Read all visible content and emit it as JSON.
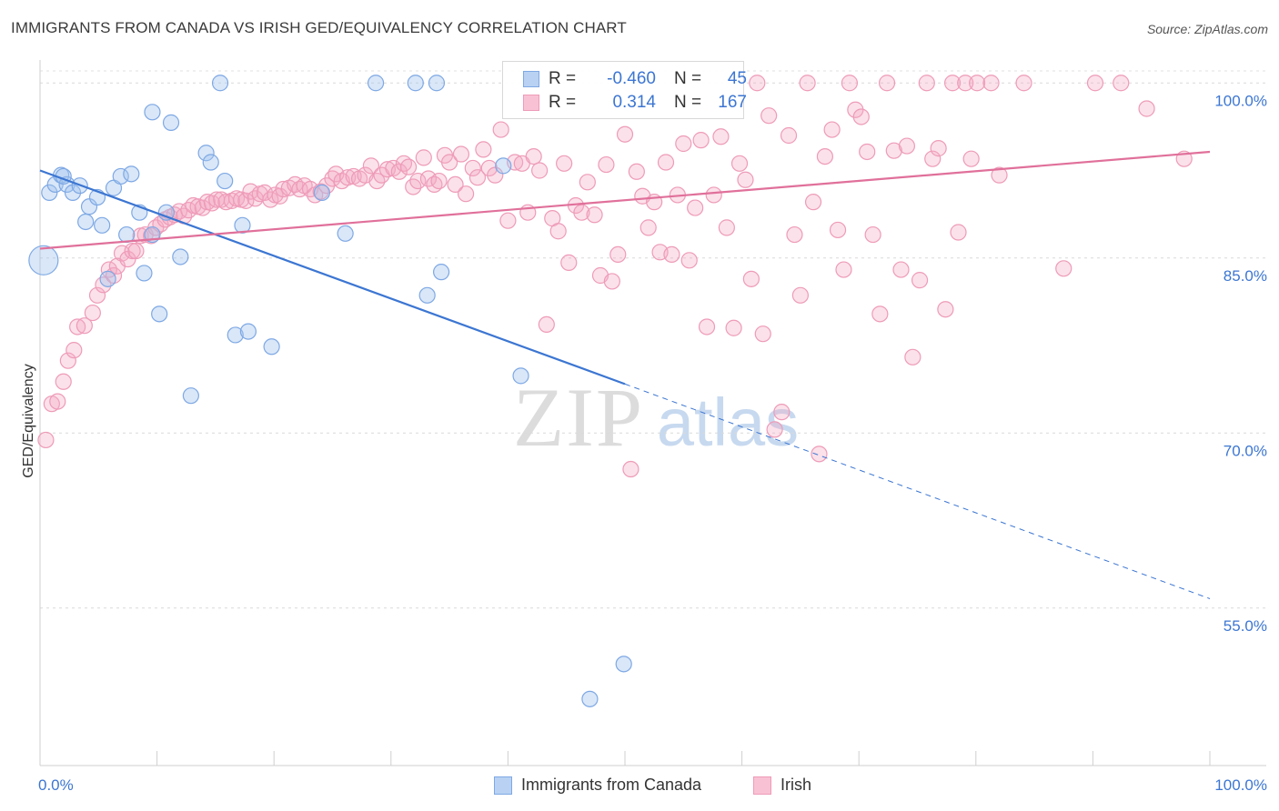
{
  "title": "IMMIGRANTS FROM CANADA VS IRISH GED/EQUIVALENCY CORRELATION CHART",
  "source": "Source: ZipAtlas.com",
  "watermark": {
    "zip": "ZIP",
    "atlas": "atlas"
  },
  "legend": {
    "rows": [
      {
        "r_label": "R =",
        "r_value": "-0.460",
        "n_label": "N =",
        "n_value": "45",
        "fill": "#b9d2f3",
        "stroke": "#7ea8e4"
      },
      {
        "r_label": "R =",
        "r_value": "0.314",
        "n_label": "N =",
        "n_value": "167",
        "fill": "#f9c2d4",
        "stroke": "#ee9bb8"
      }
    ]
  },
  "bottom_legend": [
    {
      "label": "Immigrants from Canada",
      "fill": "#b9d2f3",
      "stroke": "#7ea8e4"
    },
    {
      "label": "Irish",
      "fill": "#f9c2d4",
      "stroke": "#ee9bb8"
    }
  ],
  "chart_data": {
    "type": "scatter",
    "title": "IMMIGRANTS FROM CANADA VS IRISH GED/EQUIVALENCY CORRELATION CHART",
    "xlabel": "",
    "ylabel": "GED/Equivalency",
    "xlim": [
      0,
      100
    ],
    "ylim": [
      41.5,
      101.5
    ],
    "x_tick_labels": [
      "0.0%",
      "100.0%"
    ],
    "y_ticks": [
      100,
      85,
      70,
      55
    ],
    "y_tick_labels": [
      "100.0%",
      "85.0%",
      "70.0%",
      "55.0%"
    ],
    "grid": "horizontal dashed",
    "legend_position": "top-center",
    "colors": {
      "canada": "#3c76d2",
      "irish": "#e0709a"
    },
    "series": [
      {
        "name": "Immigrants from Canada",
        "color": "#3c76d2",
        "r": -0.46,
        "n": 45,
        "trend": {
          "x0": 0,
          "y0": 92.5,
          "x1": 50,
          "y1": 74.2,
          "dashed_to_x": 100,
          "dashed_to_y": 55.8
        },
        "points": [
          [
            0.3,
            84.8
          ],
          [
            0.8,
            90.6
          ],
          [
            1.3,
            91.3
          ],
          [
            1.8,
            92.1
          ],
          [
            2.3,
            91.3
          ],
          [
            2.8,
            90.6
          ],
          [
            3.4,
            91.2
          ],
          [
            3.9,
            88.1
          ],
          [
            4.2,
            89.4
          ],
          [
            4.9,
            90.2
          ],
          [
            5.3,
            87.8
          ],
          [
            6.3,
            91.0
          ],
          [
            6.9,
            92.0
          ],
          [
            7.4,
            87.0
          ],
          [
            7.8,
            92.2
          ],
          [
            8.5,
            88.9
          ],
          [
            8.9,
            83.7
          ],
          [
            9.6,
            97.5
          ],
          [
            9.6,
            87.0
          ],
          [
            10.2,
            80.2
          ],
          [
            10.8,
            88.9
          ],
          [
            11.2,
            96.6
          ],
          [
            12.0,
            85.1
          ],
          [
            12.9,
            73.2
          ],
          [
            14.2,
            94.0
          ],
          [
            14.6,
            93.2
          ],
          [
            15.4,
            100.0
          ],
          [
            15.8,
            91.6
          ],
          [
            16.7,
            78.4
          ],
          [
            17.3,
            87.8
          ],
          [
            17.8,
            78.7
          ],
          [
            19.8,
            77.4
          ],
          [
            24.1,
            90.6
          ],
          [
            26.1,
            87.1
          ],
          [
            28.7,
            100.0
          ],
          [
            32.1,
            100.0
          ],
          [
            33.1,
            81.8
          ],
          [
            33.9,
            100.0
          ],
          [
            34.3,
            83.8
          ],
          [
            39.6,
            92.9
          ],
          [
            41.1,
            74.9
          ],
          [
            47.0,
            47.2
          ],
          [
            49.9,
            50.2
          ],
          [
            5.8,
            83.2
          ],
          [
            2.0,
            92.0
          ]
        ]
      },
      {
        "name": "Irish",
        "color": "#e0709a",
        "r": 0.314,
        "n": 167,
        "trend": {
          "x0": 0,
          "y0": 85.8,
          "x1": 100,
          "y1": 94.1
        },
        "points": [
          [
            0.5,
            69.4
          ],
          [
            1.0,
            72.5
          ],
          [
            1.5,
            72.7
          ],
          [
            2.0,
            74.4
          ],
          [
            2.4,
            76.2
          ],
          [
            2.9,
            77.1
          ],
          [
            3.2,
            79.1
          ],
          [
            3.8,
            79.2
          ],
          [
            4.5,
            80.3
          ],
          [
            4.9,
            81.8
          ],
          [
            5.4,
            82.7
          ],
          [
            5.9,
            84.0
          ],
          [
            6.3,
            83.5
          ],
          [
            6.6,
            84.3
          ],
          [
            7.0,
            85.4
          ],
          [
            7.5,
            84.9
          ],
          [
            7.9,
            85.6
          ],
          [
            8.2,
            85.6
          ],
          [
            8.6,
            86.9
          ],
          [
            9.0,
            87.0
          ],
          [
            9.5,
            86.9
          ],
          [
            9.9,
            87.6
          ],
          [
            10.3,
            87.9
          ],
          [
            10.7,
            88.3
          ],
          [
            11.1,
            88.5
          ],
          [
            11.5,
            88.7
          ],
          [
            11.9,
            89.0
          ],
          [
            12.3,
            88.6
          ],
          [
            12.7,
            89.1
          ],
          [
            13.1,
            89.5
          ],
          [
            13.5,
            89.4
          ],
          [
            13.9,
            89.3
          ],
          [
            14.3,
            89.8
          ],
          [
            14.7,
            89.7
          ],
          [
            15.1,
            90.0
          ],
          [
            15.5,
            90.0
          ],
          [
            15.9,
            89.8
          ],
          [
            16.4,
            89.9
          ],
          [
            16.8,
            90.1
          ],
          [
            17.2,
            90.0
          ],
          [
            17.6,
            89.9
          ],
          [
            18.0,
            90.7
          ],
          [
            18.4,
            90.1
          ],
          [
            18.8,
            90.5
          ],
          [
            19.2,
            90.6
          ],
          [
            19.7,
            90.0
          ],
          [
            20.1,
            90.4
          ],
          [
            20.5,
            90.3
          ],
          [
            20.8,
            90.9
          ],
          [
            21.3,
            91.0
          ],
          [
            21.8,
            91.3
          ],
          [
            22.2,
            90.9
          ],
          [
            22.6,
            91.2
          ],
          [
            23.1,
            90.9
          ],
          [
            23.5,
            90.4
          ],
          [
            24.0,
            90.7
          ],
          [
            24.5,
            91.2
          ],
          [
            25.0,
            91.8
          ],
          [
            25.3,
            92.2
          ],
          [
            25.8,
            91.6
          ],
          [
            26.3,
            91.9
          ],
          [
            26.8,
            92.0
          ],
          [
            27.3,
            91.8
          ],
          [
            27.8,
            92.1
          ],
          [
            28.3,
            92.9
          ],
          [
            28.8,
            91.6
          ],
          [
            29.2,
            92.1
          ],
          [
            29.7,
            92.6
          ],
          [
            30.2,
            92.7
          ],
          [
            30.7,
            92.4
          ],
          [
            31.1,
            93.1
          ],
          [
            31.5,
            92.8
          ],
          [
            31.9,
            91.1
          ],
          [
            32.3,
            91.6
          ],
          [
            32.8,
            93.6
          ],
          [
            33.2,
            91.8
          ],
          [
            33.7,
            91.3
          ],
          [
            34.1,
            91.6
          ],
          [
            34.6,
            93.8
          ],
          [
            35.0,
            93.2
          ],
          [
            35.5,
            91.3
          ],
          [
            36.0,
            93.9
          ],
          [
            36.4,
            90.5
          ],
          [
            37.0,
            92.7
          ],
          [
            37.4,
            91.9
          ],
          [
            37.9,
            94.3
          ],
          [
            38.4,
            92.7
          ],
          [
            38.9,
            92.1
          ],
          [
            39.4,
            96.0
          ],
          [
            40.0,
            88.2
          ],
          [
            40.6,
            93.2
          ],
          [
            41.2,
            93.1
          ],
          [
            41.7,
            88.9
          ],
          [
            42.2,
            93.7
          ],
          [
            42.7,
            92.5
          ],
          [
            43.3,
            79.3
          ],
          [
            43.8,
            88.4
          ],
          [
            44.3,
            87.3
          ],
          [
            44.8,
            93.1
          ],
          [
            45.2,
            84.6
          ],
          [
            45.8,
            89.5
          ],
          [
            46.3,
            88.9
          ],
          [
            46.8,
            91.5
          ],
          [
            47.4,
            88.7
          ],
          [
            47.9,
            83.5
          ],
          [
            48.4,
            93.0
          ],
          [
            48.9,
            83.0
          ],
          [
            49.4,
            85.3
          ],
          [
            50.0,
            95.6
          ],
          [
            50.5,
            66.9
          ],
          [
            51.0,
            92.4
          ],
          [
            51.5,
            90.3
          ],
          [
            52.0,
            87.6
          ],
          [
            52.5,
            89.8
          ],
          [
            53.0,
            85.5
          ],
          [
            53.5,
            93.2
          ],
          [
            54.0,
            85.3
          ],
          [
            54.5,
            90.4
          ],
          [
            55.0,
            94.8
          ],
          [
            55.5,
            84.8
          ],
          [
            56.0,
            89.3
          ],
          [
            56.5,
            95.1
          ],
          [
            57.0,
            79.1
          ],
          [
            57.6,
            90.4
          ],
          [
            58.2,
            95.4
          ],
          [
            58.7,
            87.6
          ],
          [
            59.3,
            79.0
          ],
          [
            59.8,
            93.1
          ],
          [
            60.3,
            91.7
          ],
          [
            60.8,
            83.2
          ],
          [
            61.3,
            100.0
          ],
          [
            61.8,
            78.5
          ],
          [
            62.3,
            97.2
          ],
          [
            62.8,
            70.3
          ],
          [
            63.4,
            71.8
          ],
          [
            64.0,
            95.5
          ],
          [
            64.5,
            87.0
          ],
          [
            65.0,
            81.8
          ],
          [
            65.6,
            100.0
          ],
          [
            66.1,
            89.8
          ],
          [
            66.6,
            68.2
          ],
          [
            67.1,
            93.7
          ],
          [
            67.7,
            96.0
          ],
          [
            68.2,
            87.4
          ],
          [
            68.7,
            84.0
          ],
          [
            69.2,
            100.0
          ],
          [
            69.7,
            97.7
          ],
          [
            70.2,
            97.1
          ],
          [
            70.7,
            94.1
          ],
          [
            71.2,
            87.0
          ],
          [
            71.8,
            80.2
          ],
          [
            72.4,
            100.0
          ],
          [
            73.0,
            94.2
          ],
          [
            73.6,
            84.0
          ],
          [
            74.1,
            94.6
          ],
          [
            74.6,
            76.5
          ],
          [
            75.2,
            83.1
          ],
          [
            75.8,
            100.0
          ],
          [
            76.3,
            93.5
          ],
          [
            76.8,
            94.4
          ],
          [
            77.4,
            80.6
          ],
          [
            78.0,
            100.0
          ],
          [
            78.5,
            87.2
          ],
          [
            79.1,
            100.0
          ],
          [
            79.6,
            93.5
          ],
          [
            80.1,
            100.0
          ],
          [
            81.3,
            100.0
          ],
          [
            82.0,
            92.1
          ],
          [
            84.1,
            100.0
          ],
          [
            87.5,
            84.1
          ],
          [
            90.2,
            100.0
          ],
          [
            92.4,
            100.0
          ],
          [
            94.6,
            97.8
          ],
          [
            97.8,
            93.5
          ]
        ]
      }
    ]
  }
}
